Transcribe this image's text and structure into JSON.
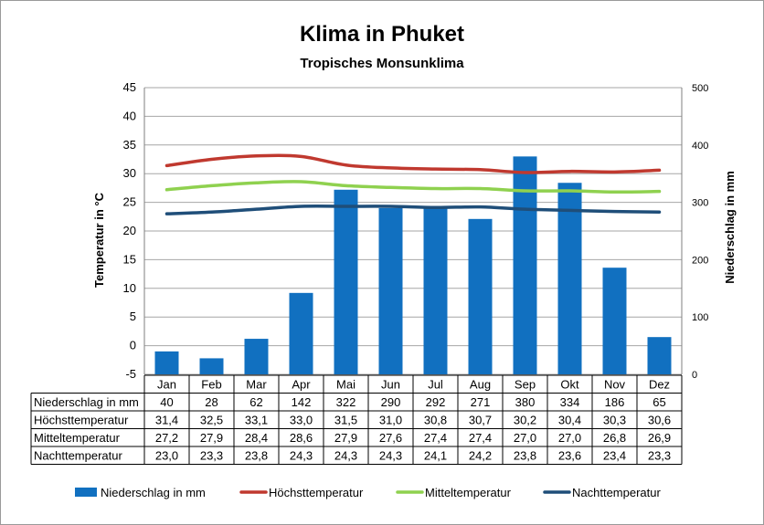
{
  "title": "Klima in Phuket",
  "subtitle": "Tropisches Monsunklima",
  "chart_data": {
    "type": "bar",
    "title": "Klima in Phuket",
    "subtitle": "Tropisches Monsunklima",
    "categories": [
      "Jan",
      "Feb",
      "Mar",
      "Apr",
      "Mai",
      "Jun",
      "Jul",
      "Aug",
      "Sep",
      "Okt",
      "Nov",
      "Dez"
    ],
    "ylabel": "Temperatur in °C",
    "y2label": "Niederschlag in mm",
    "ylim": [
      -5,
      45
    ],
    "y2lim": [
      0,
      500
    ],
    "yticks": [
      "-5",
      "0",
      "5",
      "10",
      "15",
      "20",
      "25",
      "30",
      "35",
      "40",
      "45"
    ],
    "y2ticks": [
      "0",
      "100",
      "200",
      "300",
      "400",
      "500"
    ],
    "grid": true,
    "legend": "bottom",
    "series": [
      {
        "name": "Niederschlag in mm",
        "kind": "bar",
        "axis": "right",
        "color": "#1170c0",
        "values": [
          40,
          28,
          62,
          142,
          322,
          290,
          292,
          271,
          380,
          334,
          186,
          65
        ],
        "labels": [
          "40",
          "28",
          "62",
          "142",
          "322",
          "290",
          "292",
          "271",
          "380",
          "334",
          "186",
          "65"
        ]
      },
      {
        "name": "Höchsttemperatur",
        "kind": "line",
        "axis": "left",
        "color": "#c0392f",
        "values": [
          31.4,
          32.5,
          33.1,
          33.0,
          31.5,
          31.0,
          30.8,
          30.7,
          30.2,
          30.4,
          30.3,
          30.6
        ],
        "labels": [
          "31,4",
          "32,5",
          "33,1",
          "33,0",
          "31,5",
          "31,0",
          "30,8",
          "30,7",
          "30,2",
          "30,4",
          "30,3",
          "30,6"
        ]
      },
      {
        "name": "Mitteltemperatur",
        "kind": "line",
        "axis": "left",
        "color": "#8fd14f",
        "values": [
          27.2,
          27.9,
          28.4,
          28.6,
          27.9,
          27.6,
          27.4,
          27.4,
          27.0,
          27.0,
          26.8,
          26.9
        ],
        "labels": [
          "27,2",
          "27,9",
          "28,4",
          "28,6",
          "27,9",
          "27,6",
          "27,4",
          "27,4",
          "27,0",
          "27,0",
          "26,8",
          "26,9"
        ]
      },
      {
        "name": "Nachttemperatur",
        "kind": "line",
        "axis": "left",
        "color": "#1f4e79",
        "values": [
          23.0,
          23.3,
          23.8,
          24.3,
          24.3,
          24.3,
          24.1,
          24.2,
          23.8,
          23.6,
          23.4,
          23.3
        ],
        "labels": [
          "23,0",
          "23,3",
          "23,8",
          "24,3",
          "24,3",
          "24,3",
          "24,1",
          "24,2",
          "23,8",
          "23,6",
          "23,4",
          "23,3"
        ]
      }
    ]
  }
}
